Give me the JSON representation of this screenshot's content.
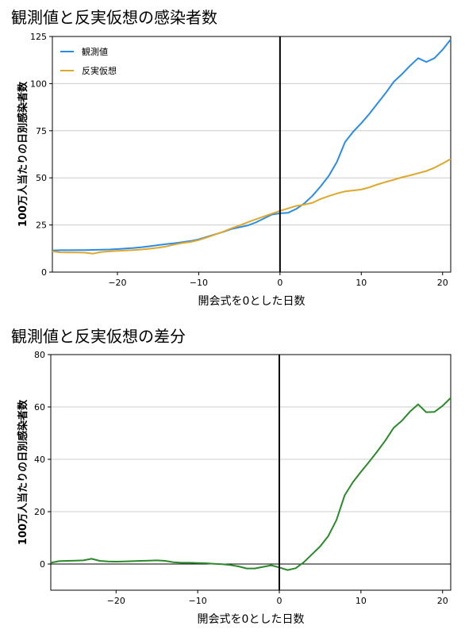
{
  "chart_data": [
    {
      "type": "line",
      "title": "観測値と反実仮想の感染者数",
      "xlabel": "開会式を0とした日数",
      "ylabel": "100万人当たりの日別感染者数",
      "xlim": [
        -28,
        21
      ],
      "ylim": [
        0,
        125
      ],
      "xticks": [
        -20,
        -10,
        0,
        10,
        20
      ],
      "yticks": [
        0,
        25,
        50,
        75,
        100,
        125
      ],
      "grid": "y",
      "legend": "top-left",
      "vline_x": 0,
      "series": [
        {
          "name": "観測値",
          "color": "#2b8ce8",
          "x": [
            -28,
            -27,
            -26,
            -25,
            -24,
            -23,
            -22,
            -21,
            -20,
            -19,
            -18,
            -17,
            -16,
            -15,
            -14,
            -13,
            -12,
            -11,
            -10,
            -9,
            -8,
            -7,
            -6,
            -5,
            -4,
            -3,
            -2,
            -1,
            0,
            1,
            2,
            3,
            4,
            5,
            6,
            7,
            8,
            9,
            10,
            11,
            12,
            13,
            14,
            15,
            16,
            17,
            18,
            19,
            20,
            21
          ],
          "y": [
            11.5,
            11.6,
            11.6,
            11.7,
            11.7,
            11.8,
            11.9,
            12.0,
            12.2,
            12.5,
            12.8,
            13.2,
            13.7,
            14.3,
            14.8,
            15.3,
            15.9,
            16.5,
            17.4,
            18.7,
            20.0,
            21.3,
            22.8,
            23.8,
            24.7,
            26.3,
            28.4,
            30.5,
            31.2,
            31.5,
            33.5,
            36.5,
            40.5,
            45.5,
            51.0,
            58.5,
            69.0,
            74.5,
            79.0,
            84.0,
            89.5,
            95.0,
            101.0,
            105.0,
            109.5,
            113.5,
            111.5,
            113.5,
            118.0,
            123.5
          ]
        },
        {
          "name": "反実仮想",
          "color": "#dfa72b",
          "x": [
            -28,
            -27,
            -26,
            -25,
            -24,
            -23,
            -22,
            -21,
            -20,
            -19,
            -18,
            -17,
            -16,
            -15,
            -14,
            -13,
            -12,
            -11,
            -10,
            -9,
            -8,
            -7,
            -6,
            -5,
            -4,
            -3,
            -2,
            -1,
            0,
            1,
            2,
            3,
            4,
            5,
            6,
            7,
            8,
            9,
            10,
            11,
            12,
            13,
            14,
            15,
            16,
            17,
            18,
            19,
            20,
            21
          ],
          "y": [
            11.0,
            10.5,
            10.4,
            10.4,
            10.3,
            9.8,
            10.7,
            11.0,
            11.3,
            11.5,
            11.7,
            12.0,
            12.4,
            12.9,
            13.6,
            14.6,
            15.4,
            16.0,
            17.0,
            18.4,
            19.9,
            21.4,
            23.2,
            24.7,
            26.4,
            28.0,
            29.5,
            31.0,
            32.5,
            33.8,
            35.1,
            35.8,
            36.8,
            38.8,
            40.3,
            41.7,
            42.8,
            43.3,
            43.8,
            45.0,
            46.5,
            47.8,
            49.0,
            50.3,
            51.3,
            52.5,
            53.6,
            55.4,
            57.6,
            60.0
          ]
        }
      ]
    },
    {
      "type": "line",
      "title": "観測値と反実仮想の差分",
      "xlabel": "開会式を0とした日数",
      "ylabel": "100万人当たりの日別感染者数",
      "xlim": [
        -28,
        21
      ],
      "ylim": [
        -10,
        80
      ],
      "xticks": [
        -20,
        -10,
        0,
        10,
        20
      ],
      "yticks": [
        0,
        20,
        40,
        60,
        80
      ],
      "grid": "y",
      "vline_x": 0,
      "hline_y": 0,
      "series": [
        {
          "color": "#2a8a2a",
          "x": [
            -28,
            -27,
            -26,
            -25,
            -24,
            -23,
            -22,
            -21,
            -20,
            -19,
            -18,
            -17,
            -16,
            -15,
            -14,
            -13,
            -12,
            -11,
            -10,
            -9,
            -8,
            -7,
            -6,
            -5,
            -4,
            -3,
            -2,
            -1,
            0,
            1,
            2,
            3,
            4,
            5,
            6,
            7,
            8,
            9,
            10,
            11,
            12,
            13,
            14,
            15,
            16,
            17,
            18,
            19,
            20,
            21
          ],
          "y": [
            0.5,
            1.1,
            1.2,
            1.3,
            1.4,
            2.0,
            1.2,
            1.0,
            0.9,
            1.0,
            1.1,
            1.2,
            1.3,
            1.4,
            1.2,
            0.7,
            0.5,
            0.5,
            0.4,
            0.3,
            0.1,
            -0.1,
            -0.4,
            -0.9,
            -1.7,
            -1.7,
            -1.1,
            -0.5,
            -1.3,
            -2.3,
            -1.6,
            0.7,
            3.7,
            6.7,
            10.7,
            16.8,
            26.2,
            31.2,
            35.2,
            39.0,
            43.0,
            47.2,
            52.0,
            54.7,
            58.2,
            61.0,
            58.0,
            58.1,
            60.4,
            63.5
          ]
        }
      ]
    }
  ]
}
